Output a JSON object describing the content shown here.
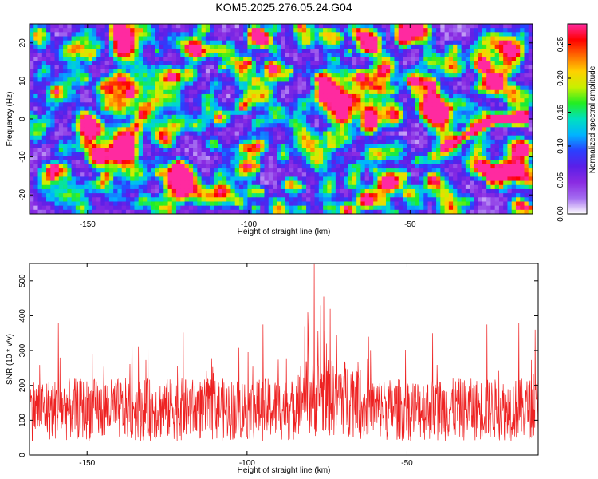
{
  "title": "KOM5.2025.276.05.24.G04",
  "colors": {
    "snr_line": "#ee2222",
    "colormap": [
      "#ffffff",
      "#a36cf0",
      "#8a2be2",
      "#5a1fe8",
      "#2a40ff",
      "#00b4ff",
      "#00e0c0",
      "#22ee22",
      "#c8f000",
      "#ffd000",
      "#ff6a00",
      "#ff0000",
      "#ff2aa0"
    ]
  },
  "chart_data": [
    {
      "type": "heatmap",
      "title": "KOM5.2025.276.05.24.G04",
      "xlabel": "Height of straight line (km)",
      "ylabel": "Frequency (Hz)",
      "xlim": [
        -168,
        -12
      ],
      "ylim": [
        -25,
        25
      ],
      "x_ticks": [
        -150,
        -100,
        -50
      ],
      "y_ticks": [
        -20,
        -10,
        0,
        10,
        20
      ],
      "colorbar": {
        "label": "Normalized spectral amplitude",
        "range": [
          0,
          0.28
        ],
        "ticks": [
          "0.00",
          "0.05",
          "0.10",
          "0.15",
          "0.20",
          "0.25"
        ],
        "tick_values": [
          0,
          0.05,
          0.1,
          0.15,
          0.2,
          0.25
        ]
      },
      "background": "noise 0.00-0.07",
      "features": [
        {
          "x_start": -41,
          "x_end": -13,
          "freq": [
            -8,
            0
          ],
          "peak_amplitude": 0.27,
          "note": "streak near 0 Hz"
        }
      ]
    },
    {
      "type": "line",
      "xlabel": "Height of straight line (km)",
      "ylabel": "SNR (10 * v/v)",
      "xlim": [
        -168,
        -9
      ],
      "ylim": [
        0,
        550
      ],
      "x_ticks": [
        -150,
        -100,
        -50
      ],
      "y_ticks": [
        0,
        100,
        200,
        300,
        400,
        500
      ],
      "noise_band": [
        40,
        220
      ],
      "peaks": [
        {
          "x": -159,
          "y": 378
        },
        {
          "x": -136,
          "y": 368
        },
        {
          "x": -134,
          "y": 310
        },
        {
          "x": -131,
          "y": 388
        },
        {
          "x": -120,
          "y": 352
        },
        {
          "x": -95,
          "y": 375
        },
        {
          "x": -82,
          "y": 370
        },
        {
          "x": -81,
          "y": 410
        },
        {
          "x": -79,
          "y": 548
        },
        {
          "x": -77,
          "y": 430
        },
        {
          "x": -76,
          "y": 455
        },
        {
          "x": -74,
          "y": 420
        },
        {
          "x": -72,
          "y": 345
        },
        {
          "x": -62,
          "y": 340
        },
        {
          "x": -42,
          "y": 350
        },
        {
          "x": -25,
          "y": 375
        },
        {
          "x": -15,
          "y": 378
        },
        {
          "x": -10,
          "y": 360
        }
      ]
    }
  ]
}
